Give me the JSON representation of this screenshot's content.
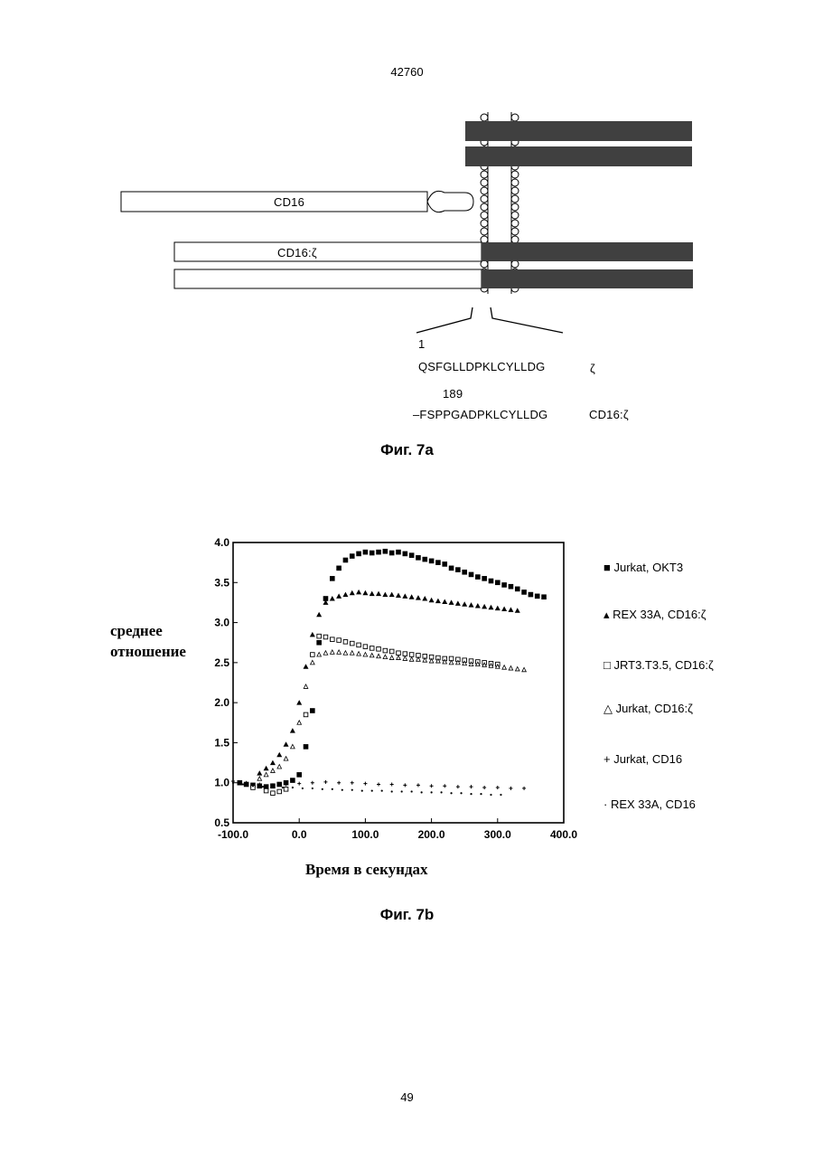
{
  "header": {
    "number": "42760"
  },
  "figure_a": {
    "caption": "Фиг. 7a",
    "labels": {
      "cd16": "CD16",
      "cd16_zeta": "CD16:ζ"
    },
    "sequences": [
      {
        "index": "1",
        "sequence": "QSFGLLDPKLCYLLDG",
        "name": "ζ"
      },
      {
        "index": "189",
        "sequence": "–FSPPGADPKLCYLLDG",
        "name": "CD16:ζ"
      }
    ]
  },
  "figure_b": {
    "caption": "Фиг. 7b",
    "ylabel_lines": [
      "среднее",
      "отношение"
    ],
    "xlabel": "Время в секундах",
    "legend": [
      {
        "marker": "filled-square",
        "symbol": "■",
        "label": "Jurkat, OKT3"
      },
      {
        "marker": "filled-triangle",
        "symbol": "▴",
        "label": "REX 33A, CD16:ζ"
      },
      {
        "marker": "open-square",
        "symbol": "□",
        "label": "JRT3.T3.5, CD16:ζ"
      },
      {
        "marker": "open-triangle",
        "symbol": "△",
        "label": "Jurkat, CD16:ζ"
      },
      {
        "marker": "plus",
        "symbol": "+",
        "label": "Jurkat, CD16"
      },
      {
        "marker": "dot",
        "symbol": "·",
        "label": "REX 33A, CD16"
      }
    ]
  },
  "chart_data": {
    "type": "scatter",
    "xlabel": "Время в секундах",
    "ylabel": "среднее отношение",
    "xlim": [
      -100,
      400
    ],
    "ylim": [
      0.5,
      4.0
    ],
    "x_ticks": [
      "-100.0",
      "0.0",
      "100.0",
      "200.0",
      "300.0",
      "400.0"
    ],
    "x_tick_values": [
      -100,
      0,
      100,
      200,
      300,
      400
    ],
    "y_ticks": [
      "0.5",
      "1.0",
      "1.5",
      "2.0",
      "2.5",
      "3.0",
      "3.5",
      "4.0"
    ],
    "y_tick_values": [
      0.5,
      1.0,
      1.5,
      2.0,
      2.5,
      3.0,
      3.5,
      4.0
    ],
    "grid": false,
    "legend_position": "right",
    "series": [
      {
        "name": "Jurkat, OKT3",
        "marker": "filled-square",
        "x": [
          -90,
          -80,
          -70,
          -60,
          -50,
          -40,
          -30,
          -20,
          -10,
          0,
          10,
          20,
          30,
          40,
          50,
          60,
          70,
          80,
          90,
          100,
          110,
          120,
          130,
          140,
          150,
          160,
          170,
          180,
          190,
          200,
          210,
          220,
          230,
          240,
          250,
          260,
          270,
          280,
          290,
          300,
          310,
          320,
          330,
          340,
          350,
          360,
          370
        ],
        "y": [
          1.0,
          0.98,
          0.97,
          0.96,
          0.95,
          0.96,
          0.98,
          1.0,
          1.03,
          1.1,
          1.45,
          1.9,
          2.75,
          3.3,
          3.55,
          3.68,
          3.78,
          3.83,
          3.86,
          3.88,
          3.87,
          3.88,
          3.89,
          3.87,
          3.88,
          3.86,
          3.84,
          3.81,
          3.79,
          3.77,
          3.75,
          3.73,
          3.68,
          3.66,
          3.63,
          3.6,
          3.57,
          3.55,
          3.52,
          3.5,
          3.47,
          3.45,
          3.42,
          3.38,
          3.35,
          3.33,
          3.32
        ]
      },
      {
        "name": "REX 33A, CD16:ζ",
        "marker": "filled-triangle",
        "x": [
          -60,
          -50,
          -40,
          -30,
          -20,
          -10,
          0,
          10,
          20,
          30,
          40,
          50,
          60,
          70,
          80,
          90,
          100,
          110,
          120,
          130,
          140,
          150,
          160,
          170,
          180,
          190,
          200,
          210,
          220,
          230,
          240,
          250,
          260,
          270,
          280,
          290,
          300,
          310,
          320,
          330
        ],
        "y": [
          1.12,
          1.18,
          1.25,
          1.35,
          1.48,
          1.65,
          2.0,
          2.45,
          2.85,
          3.1,
          3.25,
          3.3,
          3.33,
          3.35,
          3.37,
          3.38,
          3.37,
          3.36,
          3.36,
          3.35,
          3.35,
          3.34,
          3.33,
          3.32,
          3.31,
          3.3,
          3.28,
          3.27,
          3.26,
          3.25,
          3.24,
          3.23,
          3.22,
          3.21,
          3.2,
          3.19,
          3.18,
          3.17,
          3.16,
          3.15
        ]
      },
      {
        "name": "JRT3.T3.5, CD16:ζ",
        "marker": "open-square",
        "x": [
          -70,
          -50,
          -40,
          -30,
          -20,
          10,
          20,
          30,
          40,
          50,
          60,
          70,
          80,
          90,
          100,
          110,
          120,
          130,
          140,
          150,
          160,
          170,
          180,
          190,
          200,
          210,
          220,
          230,
          240,
          250,
          260,
          270,
          280,
          290,
          300
        ],
        "y": [
          0.94,
          0.9,
          0.87,
          0.89,
          0.92,
          1.85,
          2.6,
          2.83,
          2.82,
          2.79,
          2.78,
          2.76,
          2.74,
          2.72,
          2.7,
          2.68,
          2.67,
          2.65,
          2.64,
          2.62,
          2.61,
          2.6,
          2.59,
          2.58,
          2.57,
          2.56,
          2.55,
          2.55,
          2.54,
          2.53,
          2.52,
          2.51,
          2.5,
          2.49,
          2.48
        ]
      },
      {
        "name": "Jurkat, CD16:ζ",
        "marker": "open-triangle",
        "x": [
          -60,
          -50,
          -40,
          -30,
          -20,
          -10,
          0,
          10,
          20,
          30,
          40,
          50,
          60,
          70,
          80,
          90,
          100,
          110,
          120,
          130,
          140,
          150,
          160,
          170,
          180,
          190,
          200,
          210,
          220,
          230,
          240,
          250,
          260,
          270,
          280,
          290,
          300,
          310,
          320,
          330,
          340
        ],
        "y": [
          1.05,
          1.1,
          1.15,
          1.2,
          1.3,
          1.45,
          1.75,
          2.2,
          2.5,
          2.6,
          2.62,
          2.63,
          2.63,
          2.62,
          2.62,
          2.61,
          2.6,
          2.59,
          2.58,
          2.57,
          2.56,
          2.56,
          2.55,
          2.54,
          2.54,
          2.53,
          2.52,
          2.52,
          2.51,
          2.5,
          2.5,
          2.49,
          2.48,
          2.48,
          2.47,
          2.46,
          2.45,
          2.44,
          2.43,
          2.42,
          2.41
        ]
      },
      {
        "name": "Jurkat, CD16",
        "marker": "plus",
        "x": [
          -100,
          -80,
          -60,
          -40,
          -20,
          0,
          20,
          40,
          60,
          80,
          100,
          120,
          140,
          160,
          180,
          200,
          220,
          240,
          260,
          280,
          300,
          320,
          340
        ],
        "y": [
          1.02,
          1.0,
          0.98,
          0.97,
          0.98,
          0.99,
          1.0,
          1.01,
          1.0,
          1.0,
          0.99,
          0.98,
          0.98,
          0.97,
          0.97,
          0.96,
          0.96,
          0.95,
          0.95,
          0.94,
          0.94,
          0.93,
          0.93
        ]
      },
      {
        "name": "REX 33A, CD16",
        "marker": "dot",
        "x": [
          -100,
          -85,
          -70,
          -55,
          -40,
          -25,
          -10,
          5,
          20,
          35,
          50,
          65,
          80,
          95,
          110,
          125,
          140,
          155,
          170,
          185,
          200,
          215,
          230,
          245,
          260,
          275,
          290,
          305
        ],
        "y": [
          1.0,
          0.98,
          0.96,
          0.95,
          0.95,
          0.94,
          0.94,
          0.93,
          0.93,
          0.92,
          0.92,
          0.91,
          0.91,
          0.9,
          0.9,
          0.9,
          0.89,
          0.89,
          0.89,
          0.88,
          0.88,
          0.88,
          0.87,
          0.87,
          0.86,
          0.86,
          0.85,
          0.85
        ]
      }
    ]
  }
}
